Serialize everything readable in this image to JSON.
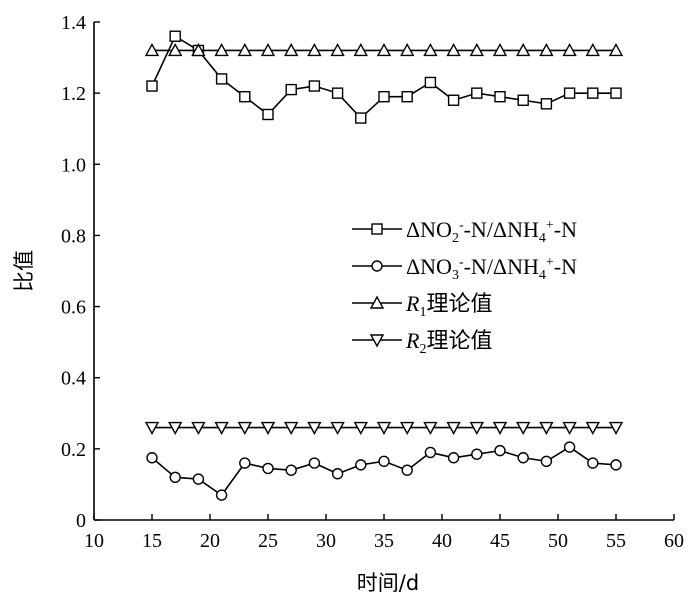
{
  "chart_data": {
    "type": "line",
    "xlabel": "时间/d",
    "ylabel": "比值",
    "xlim": [
      10,
      60
    ],
    "ylim": [
      0,
      1.4
    ],
    "xticks": [
      "10",
      "15",
      "20",
      "25",
      "30",
      "35",
      "40",
      "45",
      "50",
      "55",
      "60"
    ],
    "yticks": [
      "0",
      "0.2",
      "0.4",
      "0.6",
      "0.8",
      "1.0",
      "1.2",
      "1.4"
    ],
    "grid": false,
    "legend_position": "center-right",
    "x": [
      15,
      17,
      19,
      21,
      23,
      25,
      27,
      29,
      31,
      33,
      35,
      37,
      39,
      41,
      43,
      45,
      47,
      49,
      51,
      53,
      55
    ],
    "series": [
      {
        "legend": {
          "pre": "ΔNO",
          "sub1": "2",
          "sup1": "-",
          "mid": "-N/ΔNH",
          "sub2": "4",
          "sup2": "+",
          "post": "-N"
        },
        "marker": "square",
        "values": [
          1.22,
          1.36,
          1.32,
          1.24,
          1.19,
          1.14,
          1.21,
          1.22,
          1.2,
          1.13,
          1.19,
          1.19,
          1.23,
          1.18,
          1.2,
          1.19,
          1.18,
          1.17,
          1.2,
          1.2,
          1.2
        ]
      },
      {
        "legend": {
          "pre": "ΔNO",
          "sub1": "3",
          "sup1": "-",
          "mid": "-N/ΔNH",
          "sub2": "4",
          "sup2": "+",
          "post": "-N"
        },
        "marker": "circle",
        "values": [
          0.175,
          0.12,
          0.115,
          0.07,
          0.16,
          0.145,
          0.14,
          0.16,
          0.13,
          0.155,
          0.165,
          0.14,
          0.19,
          0.175,
          0.185,
          0.195,
          0.175,
          0.165,
          0.205,
          0.16,
          0.155
        ]
      },
      {
        "legend": {
          "pre": "R",
          "sub1": "1",
          "post": "理论值"
        },
        "marker": "triangle-up",
        "values": [
          1.32,
          1.32,
          1.32,
          1.32,
          1.32,
          1.32,
          1.32,
          1.32,
          1.32,
          1.32,
          1.32,
          1.32,
          1.32,
          1.32,
          1.32,
          1.32,
          1.32,
          1.32,
          1.32,
          1.32,
          1.32
        ]
      },
      {
        "legend": {
          "pre": "R",
          "sub1": "2",
          "post": "理论值"
        },
        "marker": "triangle-down",
        "values": [
          0.26,
          0.26,
          0.26,
          0.26,
          0.26,
          0.26,
          0.26,
          0.26,
          0.26,
          0.26,
          0.26,
          0.26,
          0.26,
          0.26,
          0.26,
          0.26,
          0.26,
          0.26,
          0.26,
          0.26,
          0.26
        ]
      }
    ]
  }
}
